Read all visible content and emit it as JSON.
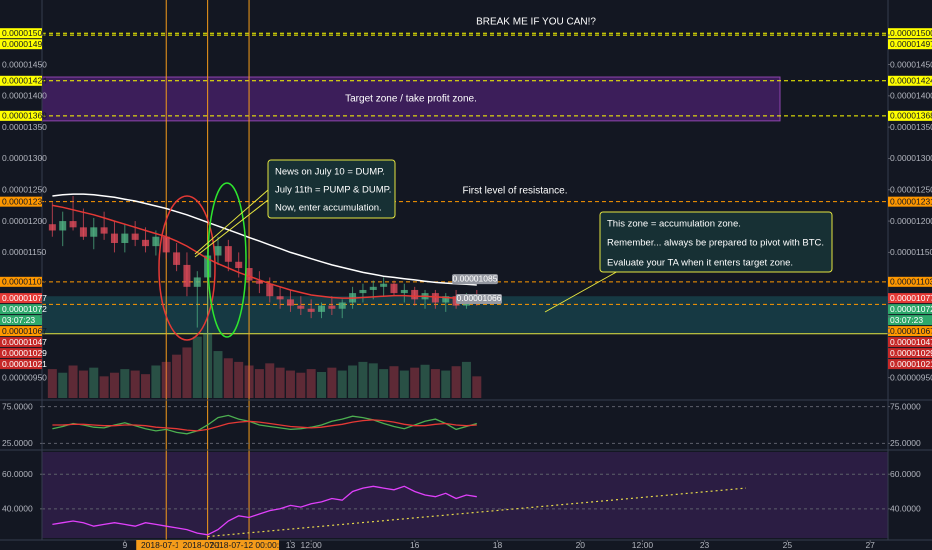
{
  "chart_data": [
    {
      "type": "candlestick",
      "title": "BREAK ME IF YOU CAN!?",
      "target_zone": {
        "text": "Target zone / take profit zone.",
        "range": [
          1.36e-05,
          1.43e-05
        ]
      },
      "resistance_label": "First level of resistance.",
      "accumulation_zone": [
        1.02e-05,
        1.08e-05
      ],
      "callouts": [
        {
          "lines": [
            "News on July 10 = DUMP.",
            "July 11th = PUMP & DUMP.",
            "Now, enter accumulation."
          ]
        },
        {
          "lines": [
            "This zone = accumulation zone.",
            "Remember... always be prepared to pivot with BTC.",
            "Evaluate your TA when it enters target zone."
          ]
        }
      ],
      "price_bubbles": [
        {
          "value": 1.085e-05,
          "label": "0.00001085"
        },
        {
          "value": 1.066e-05,
          "label": "0.00001066"
        }
      ],
      "countdown": "03:07:23",
      "xlim": [
        7,
        27.43
      ],
      "xticks": [
        9,
        {
          "value": 10,
          "label": "2018-07-10 0",
          "color": "#f59c1a"
        },
        {
          "value": 11,
          "label": "2018-07-11 0",
          "color": "#f59c1a"
        },
        {
          "value": 12,
          "label": "2018-07-12 00:00:00",
          "color": "#f59c1a"
        },
        13,
        {
          "value": 13.5,
          "label": "12:00"
        },
        16,
        18,
        20,
        {
          "value": 21.5,
          "label": "12:00"
        },
        23,
        25,
        27
      ],
      "ylim": [
        9.143e-06,
        1.553e-05
      ],
      "yticks": [
        {
          "value": 1.5e-05,
          "label": "0.00001500",
          "color": "#ffff00"
        },
        {
          "value": 1.497e-05,
          "label": "0.00001497",
          "color": "#ffff00"
        },
        {
          "value": 1.45e-05,
          "label": "0.00001450"
        },
        {
          "value": 1.424e-05,
          "label": "0.00001424",
          "color": "#ffff00"
        },
        {
          "value": 1.4e-05,
          "label": "0.00001400"
        },
        {
          "value": 1.368e-05,
          "label": "0.00001368",
          "color": "#ffff00"
        },
        {
          "value": 1.35e-05,
          "label": "0.00001350"
        },
        {
          "value": 1.3e-05,
          "label": "0.00001300"
        },
        {
          "value": 1.25e-05,
          "label": "0.00001250"
        },
        {
          "value": 1.231e-05,
          "label": "0.00001231",
          "color": "#ff9800"
        },
        {
          "value": 1.2e-05,
          "label": "0.00001200"
        },
        {
          "value": 1.15e-05,
          "label": "0.00001150"
        },
        {
          "value": 1.103e-05,
          "label": "0.00001103",
          "color": "#ff9800"
        },
        {
          "value": 1.077e-05,
          "label": "0.00001077",
          "color": "#e53935"
        },
        {
          "value": 1.072e-05,
          "label": "0.00001072",
          "color": "#2ea86b"
        },
        {
          "value": 1.067e-05,
          "label": "0.00001067",
          "color": "#ff9800"
        },
        {
          "value": 1.047e-05,
          "label": "0.00001047",
          "color": "#c62828"
        },
        {
          "value": 1.029e-05,
          "label": "0.00001029",
          "color": "#c62828"
        },
        {
          "value": 1.021e-05,
          "label": "0.00001021",
          "color": "#c62828"
        },
        {
          "value": 9.5e-06,
          "label": "0.00000950"
        }
      ],
      "x": [
        7.25,
        7.5,
        7.75,
        8,
        8.25,
        8.5,
        8.75,
        9,
        9.25,
        9.5,
        9.75,
        10,
        10.25,
        10.5,
        10.75,
        11,
        11.25,
        11.5,
        11.75,
        12,
        12.25,
        12.5,
        12.75,
        13,
        13.25,
        13.5,
        13.75,
        14,
        14.25,
        14.5,
        14.75,
        15,
        15.25,
        15.5,
        15.75,
        16,
        16.25,
        16.5,
        16.75,
        17,
        17.25,
        17.5
      ],
      "open": [
        1.195e-05,
        1.185e-05,
        1.2e-05,
        1.19e-05,
        1.175e-05,
        1.19e-05,
        1.18e-05,
        1.165e-05,
        1.18e-05,
        1.17e-05,
        1.16e-05,
        1.175e-05,
        1.15e-05,
        1.13e-05,
        1.095e-05,
        1.11e-05,
        1.145e-05,
        1.16e-05,
        1.135e-05,
        1.125e-05,
        1.105e-05,
        1.1e-05,
        1.08e-05,
        1.075e-05,
        1.065e-05,
        1.06e-05,
        1.055e-05,
        1.065e-05,
        1.06e-05,
        1.07e-05,
        1.085e-05,
        1.09e-05,
        1.095e-05,
        1.1e-05,
        1.085e-05,
        1.09e-05,
        1.075e-05,
        1.085e-05,
        1.07e-05,
        1.08e-05,
        1.065e-05,
        1.08e-05
      ],
      "high": [
        1.23e-05,
        1.215e-05,
        1.24e-05,
        1.22e-05,
        1.205e-05,
        1.215e-05,
        1.2e-05,
        1.195e-05,
        1.2e-05,
        1.19e-05,
        1.185e-05,
        1.18e-05,
        1.165e-05,
        1.15e-05,
        1.12e-05,
        1.15e-05,
        1.175e-05,
        1.17e-05,
        1.15e-05,
        1.14e-05,
        1.12e-05,
        1.11e-05,
        1.095e-05,
        1.09e-05,
        1.08e-05,
        1.075e-05,
        1.07e-05,
        1.08e-05,
        1.075e-05,
        1.095e-05,
        1.1e-05,
        1.105e-05,
        1.11e-05,
        1.105e-05,
        1.1e-05,
        1.095e-05,
        1.09e-05,
        1.09e-05,
        1.085e-05,
        1.09e-05,
        1.085e-05,
        1.09e-05
      ],
      "low": [
        1.175e-05,
        1.16e-05,
        1.185e-05,
        1.17e-05,
        1.155e-05,
        1.17e-05,
        1.15e-05,
        1.15e-05,
        1.16e-05,
        1.15e-05,
        1.145e-05,
        1.14e-05,
        1.12e-05,
        1.08e-05,
        1.03e-05,
        1.02e-05,
        1.13e-05,
        1.12e-05,
        1.11e-05,
        1.095e-05,
        1.085e-05,
        1.07e-05,
        1.06e-05,
        1.055e-05,
        1.05e-05,
        1.045e-05,
        1.045e-05,
        1.05e-05,
        1.045e-05,
        1.06e-05,
        1.07e-05,
        1.075e-05,
        1.08e-05,
        1.08e-05,
        1.07e-05,
        1.065e-05,
        1.06e-05,
        1.06e-05,
        1.055e-05,
        1.06e-05,
        1.06e-05,
        1.065e-05
      ],
      "close": [
        1.185e-05,
        1.2e-05,
        1.19e-05,
        1.175e-05,
        1.19e-05,
        1.18e-05,
        1.165e-05,
        1.18e-05,
        1.17e-05,
        1.16e-05,
        1.175e-05,
        1.15e-05,
        1.13e-05,
        1.095e-05,
        1.11e-05,
        1.145e-05,
        1.16e-05,
        1.135e-05,
        1.125e-05,
        1.105e-05,
        1.1e-05,
        1.08e-05,
        1.075e-05,
        1.065e-05,
        1.06e-05,
        1.055e-05,
        1.065e-05,
        1.06e-05,
        1.07e-05,
        1.085e-05,
        1.09e-05,
        1.095e-05,
        1.1e-05,
        1.085e-05,
        1.09e-05,
        1.075e-05,
        1.085e-05,
        1.07e-05,
        1.08e-05,
        1.065e-05,
        1.08e-05,
        1.072e-05
      ],
      "up_color": "#53b987",
      "down_color": "#eb4d5c",
      "volume": [
        40,
        35,
        45,
        38,
        42,
        30,
        35,
        40,
        38,
        33,
        45,
        50,
        60,
        70,
        85,
        90,
        65,
        55,
        50,
        45,
        40,
        48,
        42,
        38,
        35,
        40,
        36,
        42,
        38,
        45,
        50,
        48,
        40,
        44,
        38,
        42,
        46,
        40,
        38,
        44,
        50,
        30
      ],
      "series": [
        {
          "color": "#ffffff",
          "values": [
            1.24e-05,
            1.242e-05,
            1.243e-05,
            1.243e-05,
            1.242e-05,
            1.24e-05,
            1.238e-05,
            1.235e-05,
            1.232e-05,
            1.228e-05,
            1.224e-05,
            1.22e-05,
            1.215e-05,
            1.21e-05,
            1.204e-05,
            1.198e-05,
            1.192e-05,
            1.186e-05,
            1.18e-05,
            1.174e-05,
            1.168e-05,
            1.162e-05,
            1.156e-05,
            1.15e-05,
            1.145e-05,
            1.14e-05,
            1.135e-05,
            1.13e-05,
            1.126e-05,
            1.122e-05,
            1.118e-05,
            1.115e-05,
            1.112e-05,
            1.11e-05,
            1.108e-05,
            1.106e-05,
            1.104e-05,
            1.102e-05,
            1.101e-05,
            1.1e-05,
            1.099e-05,
            1.098e-05
          ]
        },
        {
          "color": "#e53935",
          "values": [
            1.225e-05,
            1.222e-05,
            1.218e-05,
            1.214e-05,
            1.21e-05,
            1.205e-05,
            1.2e-05,
            1.195e-05,
            1.19e-05,
            1.185e-05,
            1.18e-05,
            1.175e-05,
            1.168e-05,
            1.16e-05,
            1.15e-05,
            1.14e-05,
            1.132e-05,
            1.125e-05,
            1.118e-05,
            1.112e-05,
            1.106e-05,
            1.1e-05,
            1.095e-05,
            1.09e-05,
            1.086e-05,
            1.082e-05,
            1.08e-05,
            1.078e-05,
            1.077e-05,
            1.077e-05,
            1.078e-05,
            1.079e-05,
            1.08e-05,
            1.081e-05,
            1.081e-05,
            1.08e-05,
            1.08e-05,
            1.079e-05,
            1.078e-05,
            1.077e-05,
            1.076e-05,
            1.075e-05
          ]
        }
      ]
    },
    {
      "type": "line",
      "ylim": [
        16,
        84
      ],
      "yticks": [
        {
          "value": 75,
          "label": "75.0000"
        },
        {
          "value": 25,
          "label": "25.0000"
        }
      ],
      "series": [
        {
          "color": "#4caf50",
          "values": [
            45,
            48,
            52,
            50,
            47,
            46,
            50,
            53,
            49,
            45,
            42,
            44,
            40,
            38,
            42,
            50,
            60,
            63,
            58,
            55,
            50,
            48,
            46,
            44,
            45,
            47,
            50,
            55,
            58,
            62,
            60,
            57,
            52,
            48,
            45,
            50,
            55,
            58,
            52,
            44,
            48,
            52
          ]
        },
        {
          "color": "#e53935",
          "values": [
            50,
            50,
            51,
            51,
            50,
            49,
            49,
            50,
            50,
            49,
            47,
            46,
            45,
            43,
            42,
            44,
            48,
            52,
            54,
            55,
            54,
            52,
            50,
            48,
            47,
            46,
            47,
            49,
            51,
            54,
            56,
            57,
            56,
            54,
            51,
            49,
            49,
            51,
            52,
            50,
            49,
            50
          ]
        }
      ]
    },
    {
      "type": "line",
      "ylim": [
        22,
        74
      ],
      "yticks": [
        {
          "value": 60,
          "label": "60.0000"
        },
        {
          "value": 40,
          "label": "40.0000"
        }
      ],
      "trendline": {
        "x": [
          11,
          24
        ],
        "y": [
          24,
          52
        ],
        "color": "#e6d84a"
      },
      "series": [
        {
          "color": "#e040fb",
          "values": [
            31,
            32,
            33,
            32,
            30,
            31,
            32,
            31,
            30,
            32,
            31,
            30,
            29,
            28,
            26,
            25,
            28,
            33,
            36,
            35,
            37,
            39,
            40,
            42,
            41,
            43,
            44,
            46,
            45,
            50,
            52,
            53,
            52,
            51,
            53,
            50,
            48,
            47,
            49,
            46,
            48,
            47
          ]
        }
      ]
    }
  ]
}
